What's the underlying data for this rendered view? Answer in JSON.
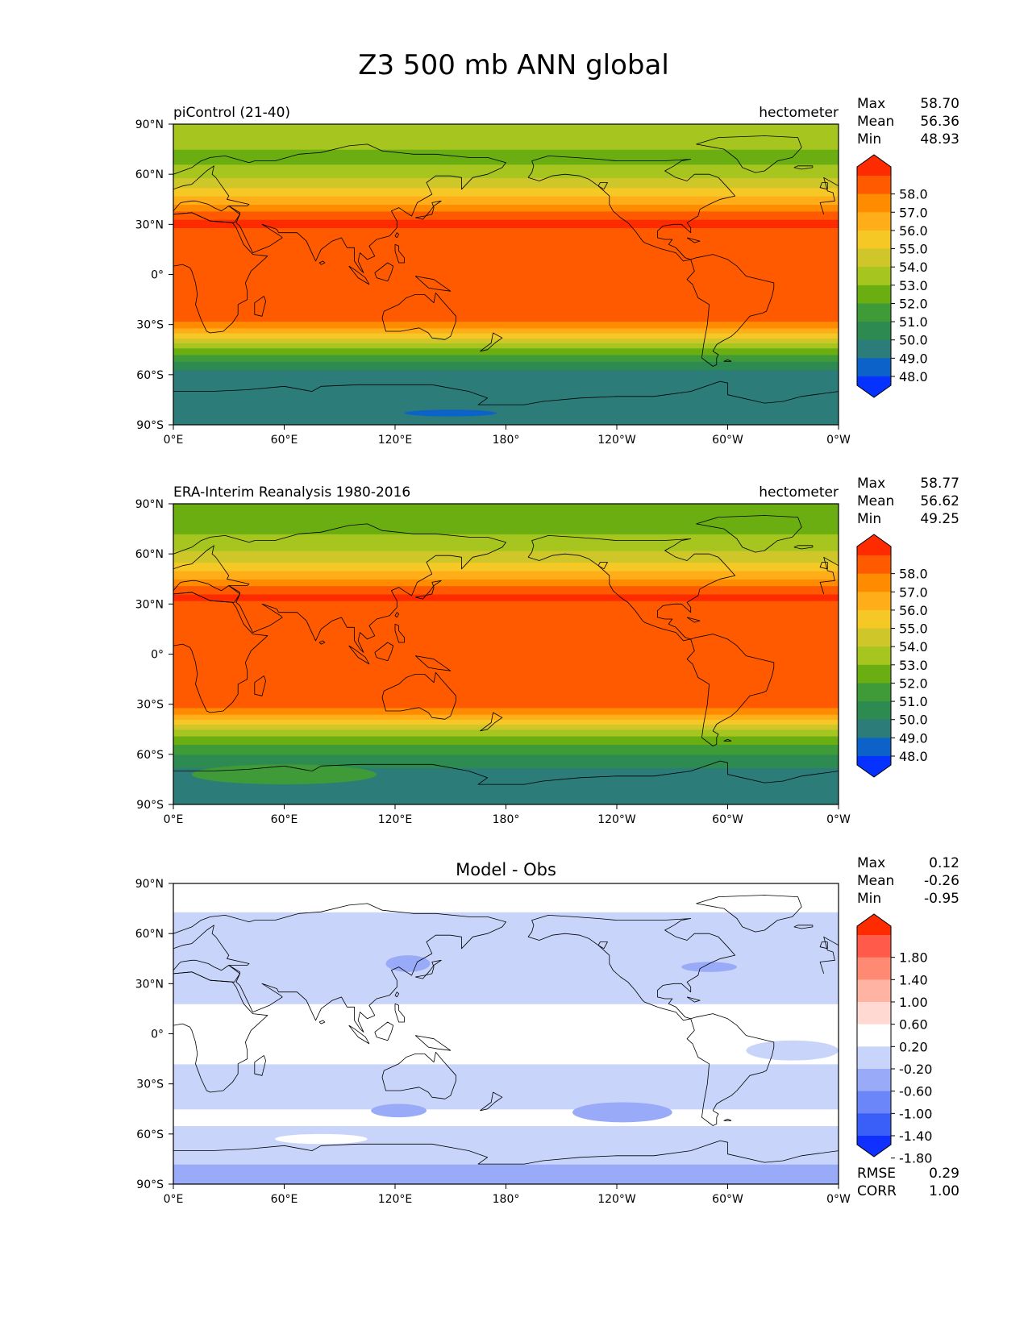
{
  "figure": {
    "title": "Z3 500 mb ANN global",
    "lat_ticks": [
      "90°N",
      "60°N",
      "30°N",
      "0°",
      "30°S",
      "60°S",
      "90°S"
    ],
    "lon_ticks": [
      "0°E",
      "60°E",
      "120°E",
      "180°",
      "120°W",
      "60°W",
      "0°W"
    ]
  },
  "panels": [
    {
      "id": "test",
      "left_title": "piControl (21-40)",
      "center_title": "",
      "right_title": "hectometer",
      "stats": [
        {
          "label": "Max",
          "value": "58.70"
        },
        {
          "label": "Mean",
          "value": "56.36"
        },
        {
          "label": "Min",
          "value": "48.93"
        }
      ],
      "colorbar": {
        "labels": [
          "58.0",
          "57.0",
          "56.0",
          "55.0",
          "54.0",
          "53.0",
          "52.0",
          "51.0",
          "50.0",
          "49.0",
          "48.0"
        ],
        "colors": [
          "#ff2b00",
          "#ff5a00",
          "#ff8c00",
          "#ffae1a",
          "#f5c825",
          "#cfc62a",
          "#a7c51f",
          "#6aae12",
          "#3f9a38",
          "#2d8a50",
          "#2c7c7a",
          "#0c62c8",
          "#0632ff"
        ]
      },
      "map": {
        "palette": [
          "#2c7c7a",
          "#2d8a50",
          "#3f9a38",
          "#6aae12",
          "#a7c51f",
          "#cfc62a",
          "#f5c825",
          "#ffae1a",
          "#ff8c00",
          "#ff5a00",
          "#ff2b00"
        ],
        "band_edges_lat": [
          -90,
          -57,
          -52,
          -48,
          -44,
          -41,
          -38,
          -35,
          -32,
          -28,
          28,
          33,
          38,
          42,
          47,
          52,
          58,
          66,
          75,
          90
        ],
        "band_color_index": [
          0,
          1,
          2,
          3,
          4,
          5,
          6,
          7,
          8,
          9,
          10,
          9,
          8,
          7,
          6,
          5,
          4,
          3,
          4,
          3
        ],
        "lows": [
          {
            "lon": 150,
            "lat": -83,
            "dlon": 25,
            "dlat": 2,
            "color": "#0c62c8"
          }
        ]
      },
      "footer_stats": []
    },
    {
      "id": "reference",
      "left_title": "ERA-Interim Reanalysis 1980-2016",
      "center_title": "",
      "right_title": "hectometer",
      "stats": [
        {
          "label": "Max",
          "value": "58.77"
        },
        {
          "label": "Mean",
          "value": "56.62"
        },
        {
          "label": "Min",
          "value": "49.25"
        }
      ],
      "colorbar": {
        "labels": [
          "58.0",
          "57.0",
          "56.0",
          "55.0",
          "54.0",
          "53.0",
          "52.0",
          "51.0",
          "50.0",
          "49.0",
          "48.0"
        ],
        "colors": [
          "#ff2b00",
          "#ff5a00",
          "#ff8c00",
          "#ffae1a",
          "#f5c825",
          "#cfc62a",
          "#a7c51f",
          "#6aae12",
          "#3f9a38",
          "#2d8a50",
          "#2c7c7a",
          "#0c62c8",
          "#0632ff"
        ]
      },
      "map": {
        "palette": [
          "#2c7c7a",
          "#2d8a50",
          "#3f9a38",
          "#6aae12",
          "#a7c51f",
          "#cfc62a",
          "#f5c825",
          "#ffae1a",
          "#ff8c00",
          "#ff5a00",
          "#ff2b00"
        ],
        "band_edges_lat": [
          -90,
          -68,
          -60,
          -54,
          -49,
          -45,
          -42,
          -39,
          -36,
          -32,
          32,
          36,
          41,
          45,
          50,
          55,
          62,
          72,
          90
        ],
        "band_color_index": [
          0,
          1,
          2,
          3,
          4,
          5,
          6,
          7,
          8,
          9,
          10,
          9,
          8,
          7,
          6,
          5,
          4,
          3
        ],
        "lows": [
          {
            "lon": 60,
            "lat": -72,
            "dlon": 50,
            "dlat": 6,
            "color": "#3f9a38"
          }
        ]
      },
      "footer_stats": []
    },
    {
      "id": "diff",
      "left_title": "",
      "center_title": "Model - Obs",
      "right_title": "",
      "stats": [
        {
          "label": "Max",
          "value": "0.12"
        },
        {
          "label": "Mean",
          "value": "-0.26"
        },
        {
          "label": "Min",
          "value": "-0.95"
        }
      ],
      "colorbar": {
        "labels": [
          "1.80",
          "1.40",
          "1.00",
          "0.60",
          "0.20",
          "-0.20",
          "-0.60",
          "-1.00",
          "-1.40",
          "-1.80"
        ],
        "colors": [
          "#ff2b00",
          "#ff5a4a",
          "#ff8a74",
          "#ffb3a3",
          "#ffd9d2",
          "#ffffff",
          "#c8d4fa",
          "#98aaf8",
          "#6a86f8",
          "#3a5ef8",
          "#0f30ff"
        ]
      },
      "map": {
        "palette": [
          "#c8d4fa",
          "#ffffff",
          "#98aaf8"
        ],
        "band_edges_lat": [
          -90,
          -78,
          -55,
          -45,
          -18,
          18,
          30,
          73,
          90
        ],
        "band_color_index": [
          2,
          0,
          1,
          0,
          1,
          0,
          0,
          1
        ],
        "lows": [
          {
            "lon": 127,
            "lat": 42,
            "dlon": 12,
            "dlat": 5,
            "color": "#98aaf8"
          },
          {
            "lon": 290,
            "lat": 40,
            "dlon": 15,
            "dlat": 3,
            "color": "#98aaf8"
          },
          {
            "lon": 122,
            "lat": -46,
            "dlon": 15,
            "dlat": 4,
            "color": "#98aaf8"
          },
          {
            "lon": 243,
            "lat": -47,
            "dlon": 27,
            "dlat": 6,
            "color": "#98aaf8"
          },
          {
            "lon": 80,
            "lat": -63,
            "dlon": 25,
            "dlat": 3,
            "color": "#ffffff"
          },
          {
            "lon": 335,
            "lat": -10,
            "dlon": 25,
            "dlat": 6,
            "color": "#c8d4fa"
          }
        ]
      },
      "footer_stats": [
        {
          "label": "RMSE",
          "value": "0.29"
        },
        {
          "label": "CORR",
          "value": "1.00"
        }
      ]
    }
  ],
  "chart_data": {
    "type": "heatmap",
    "title": "Z3 500 mb ANN global",
    "xlabel": "",
    "ylabel": "",
    "xlim": [
      0,
      360
    ],
    "ylim": [
      -90,
      90
    ],
    "x_ticks": [
      "0°E",
      "60°E",
      "120°E",
      "180°",
      "120°W",
      "60°W",
      "0°W"
    ],
    "y_ticks": [
      "90°N",
      "60°N",
      "30°N",
      "0°",
      "30°S",
      "60°S",
      "90°S"
    ],
    "units": "hectometer",
    "series": [
      {
        "name": "piControl (21-40)",
        "max": 58.7,
        "mean": 56.36,
        "min": 48.93,
        "contour_levels": [
          48.0,
          49.0,
          50.0,
          51.0,
          52.0,
          53.0,
          54.0,
          55.0,
          56.0,
          57.0,
          58.0
        ]
      },
      {
        "name": "ERA-Interim Reanalysis 1980-2016",
        "max": 58.77,
        "mean": 56.62,
        "min": 49.25,
        "contour_levels": [
          48.0,
          49.0,
          50.0,
          51.0,
          52.0,
          53.0,
          54.0,
          55.0,
          56.0,
          57.0,
          58.0
        ]
      },
      {
        "name": "Model - Obs",
        "max": 0.12,
        "mean": -0.26,
        "min": -0.95,
        "rmse": 0.29,
        "corr": 1.0,
        "contour_levels": [
          -1.8,
          -1.4,
          -1.0,
          -0.6,
          -0.2,
          0.2,
          0.6,
          1.0,
          1.4,
          1.8
        ]
      }
    ]
  }
}
